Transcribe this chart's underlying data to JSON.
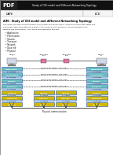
{
  "title_header": "Study of OSI model and Different Networking Topology",
  "date_label": "DATE",
  "ecd_label": "ECD",
  "aim_text": "AIM : Study of OSI model and different Networking Topology",
  "body_line1": "The Open Systems Interconnection (OSI) model has seven layers. Once it has been described and",
  "body_line2": "explained, beginning with the lowest in the hierarchy (the physical) and proceeding to the",
  "body_line3": "highest (the application). The layers are numbered like way:",
  "bullet_items": [
    "Application",
    "Presentation",
    "Session",
    "Transport",
    "Network",
    "Data link",
    "Physical"
  ],
  "osi_layers": [
    "Application",
    "Presentation",
    "Session",
    "Transport",
    "Network",
    "Data link",
    "Physical"
  ],
  "teal_color": "#6bbfbf",
  "yellow_color": "#d4b800",
  "peer_labels": [
    "Peer-to-peer protocol (7th layer)",
    "Peer-to-peer protocol (6th layer)",
    "Peer-to-peer protocol (5th layer)",
    "Peer-to-peer protocol (4th layer)"
  ],
  "phys_label": "Physical communication",
  "background_color": "#ffffff",
  "header_bg": "#111111",
  "pdf_label_bg": "#111111"
}
